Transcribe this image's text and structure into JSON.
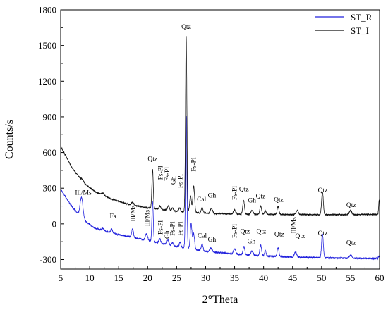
{
  "chart_data": {
    "type": "line",
    "xlabel": "2°Theta",
    "ylabel": "Counts/s",
    "xlim": [
      5,
      60
    ],
    "ylim": [
      -380,
      1800
    ],
    "x_ticks": [
      5,
      10,
      15,
      20,
      25,
      30,
      35,
      40,
      45,
      50,
      55,
      60
    ],
    "y_ticks": [
      -300,
      0,
      300,
      600,
      900,
      1200,
      1500,
      1800
    ],
    "grid": false,
    "legend_position": "top-right",
    "series": [
      {
        "name": "ST_R",
        "color": "#2222dd",
        "baseline": [
          [
            5,
            290
          ],
          [
            7,
            140
          ],
          [
            9,
            30
          ],
          [
            11,
            -40
          ],
          [
            15,
            -90
          ],
          [
            20,
            -140
          ],
          [
            25,
            -190
          ],
          [
            30,
            -230
          ],
          [
            35,
            -255
          ],
          [
            40,
            -270
          ],
          [
            45,
            -280
          ],
          [
            50,
            -285
          ],
          [
            55,
            -290
          ],
          [
            60,
            -292
          ]
        ],
        "peaks": [
          [
            8.6,
            170,
            0.25
          ],
          [
            12.3,
            20,
            0.2
          ],
          [
            13.8,
            30,
            0.15
          ],
          [
            17.4,
            70,
            0.15
          ],
          [
            19.8,
            55,
            0.2
          ],
          [
            20.85,
            340,
            0.12
          ],
          [
            22.1,
            35,
            0.15
          ],
          [
            23.5,
            40,
            0.15
          ],
          [
            24.3,
            25,
            0.15
          ],
          [
            25.6,
            40,
            0.15
          ],
          [
            26.65,
            1110,
            0.12
          ],
          [
            27.5,
            210,
            0.15
          ],
          [
            27.95,
            130,
            0.15
          ],
          [
            29.4,
            55,
            0.15
          ],
          [
            30.9,
            30,
            0.2
          ],
          [
            35.0,
            45,
            0.2
          ],
          [
            36.6,
            70,
            0.15
          ],
          [
            38.0,
            35,
            0.2
          ],
          [
            39.5,
            90,
            0.15
          ],
          [
            40.3,
            45,
            0.15
          ],
          [
            42.5,
            75,
            0.15
          ],
          [
            45.5,
            45,
            0.2
          ],
          [
            50.15,
            200,
            0.15
          ],
          [
            55.0,
            30,
            0.2
          ],
          [
            59.9,
            20,
            0.1
          ]
        ]
      },
      {
        "name": "ST_I",
        "color": "#111111",
        "baseline": [
          [
            5,
            650
          ],
          [
            7,
            470
          ],
          [
            9,
            340
          ],
          [
            11,
            270
          ],
          [
            14,
            205
          ],
          [
            17,
            160
          ],
          [
            20,
            135
          ],
          [
            25,
            105
          ],
          [
            30,
            90
          ],
          [
            35,
            82
          ],
          [
            40,
            80
          ],
          [
            45,
            78
          ],
          [
            50,
            77
          ],
          [
            55,
            78
          ],
          [
            60,
            80
          ]
        ],
        "peaks": [
          [
            8.8,
            20,
            0.25
          ],
          [
            12.3,
            15,
            0.2
          ],
          [
            17.4,
            25,
            0.2
          ],
          [
            20.85,
            330,
            0.12
          ],
          [
            22.1,
            30,
            0.15
          ],
          [
            23.6,
            40,
            0.15
          ],
          [
            24.3,
            25,
            0.15
          ],
          [
            25.5,
            30,
            0.15
          ],
          [
            26.65,
            1480,
            0.12
          ],
          [
            27.4,
            140,
            0.15
          ],
          [
            27.95,
            220,
            0.15
          ],
          [
            29.4,
            45,
            0.15
          ],
          [
            31.0,
            40,
            0.2
          ],
          [
            35.0,
            35,
            0.2
          ],
          [
            36.55,
            115,
            0.15
          ],
          [
            38.0,
            30,
            0.2
          ],
          [
            39.5,
            70,
            0.15
          ],
          [
            40.3,
            30,
            0.15
          ],
          [
            42.5,
            70,
            0.15
          ],
          [
            45.8,
            35,
            0.2
          ],
          [
            50.15,
            190,
            0.15
          ],
          [
            55.0,
            35,
            0.2
          ],
          [
            59.95,
            120,
            0.1
          ]
        ]
      }
    ],
    "annotations": [
      {
        "text": "Qtz",
        "x": 26.65,
        "y": 1640
      },
      {
        "text": "Qtz",
        "x": 20.85,
        "y": 530
      },
      {
        "text": "Fs-Pl",
        "x": 27.95,
        "y": 440,
        "rotate": -90
      },
      {
        "text": "Fs-Pl",
        "x": 22.2,
        "y": 370,
        "rotate": -90
      },
      {
        "text": "Fs-Pl",
        "x": 23.4,
        "y": 360,
        "rotate": -90
      },
      {
        "text": "Gh",
        "x": 24.4,
        "y": 330,
        "rotate": -90
      },
      {
        "text": "Fs-Pl",
        "x": 25.6,
        "y": 300,
        "rotate": -90
      },
      {
        "text": "Cal",
        "x": 29.3,
        "y": 190
      },
      {
        "text": "Gh",
        "x": 31.1,
        "y": 220
      },
      {
        "text": "Fs-Pl",
        "x": 35.0,
        "y": 200,
        "rotate": -90
      },
      {
        "text": "Qtz",
        "x": 36.6,
        "y": 275
      },
      {
        "text": "Gh",
        "x": 38.0,
        "y": 180
      },
      {
        "text": "Qtz",
        "x": 39.5,
        "y": 215
      },
      {
        "text": "Qtz",
        "x": 42.6,
        "y": 185
      },
      {
        "text": "Qtz",
        "x": 50.2,
        "y": 265
      },
      {
        "text": "Qtz",
        "x": 55.1,
        "y": 140
      },
      {
        "text": "Ill/Ms",
        "x": 8.9,
        "y": 245
      },
      {
        "text": "Fs",
        "x": 14.0,
        "y": 50
      },
      {
        "text": "Ill/Ms",
        "x": 17.5,
        "y": 20,
        "rotate": -90
      },
      {
        "text": "Ill/Ms",
        "x": 19.9,
        "y": -20,
        "rotate": -90
      },
      {
        "text": "Fs-Pl",
        "x": 22.2,
        "y": -90,
        "rotate": -90
      },
      {
        "text": "Gh",
        "x": 23.4,
        "y": -125,
        "rotate": -90
      },
      {
        "text": "Fs-Pl",
        "x": 24.3,
        "y": -100,
        "rotate": -90
      },
      {
        "text": "Fs-Pl",
        "x": 25.6,
        "y": -100,
        "rotate": -90
      },
      {
        "text": "Cal",
        "x": 29.4,
        "y": -115
      },
      {
        "text": "Gh",
        "x": 31.1,
        "y": -150
      },
      {
        "text": "Fs-Pl",
        "x": 35.0,
        "y": -120,
        "rotate": -90
      },
      {
        "text": "Qtz",
        "x": 36.8,
        "y": -80
      },
      {
        "text": "Gh",
        "x": 37.9,
        "y": -165
      },
      {
        "text": "Qtz",
        "x": 39.6,
        "y": -80
      },
      {
        "text": "Qtz",
        "x": 42.7,
        "y": -105
      },
      {
        "text": "Ill/Ms",
        "x": 45.2,
        "y": -80,
        "rotate": -90
      },
      {
        "text": "Qtz",
        "x": 46.3,
        "y": -120
      },
      {
        "text": "Qtz",
        "x": 50.2,
        "y": -95
      },
      {
        "text": "Qtz",
        "x": 55.1,
        "y": -175
      }
    ]
  }
}
